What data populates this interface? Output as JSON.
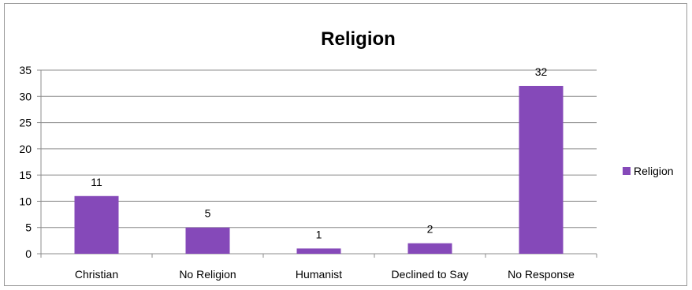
{
  "chart_data": {
    "type": "bar",
    "title": "Religion",
    "categories": [
      "Christian",
      "No Religion",
      "Humanist",
      "Declined to Say",
      "No Response"
    ],
    "series": [
      {
        "name": "Religion",
        "values": [
          11,
          5,
          1,
          2,
          32
        ],
        "color": "#8549b9"
      }
    ],
    "xlabel": "",
    "ylabel": "",
    "ylim": [
      0,
      35
    ],
    "yticks": [
      0,
      5,
      10,
      15,
      20,
      25,
      30,
      35
    ],
    "grid": true,
    "legend_position": "right",
    "data_labels": true
  }
}
